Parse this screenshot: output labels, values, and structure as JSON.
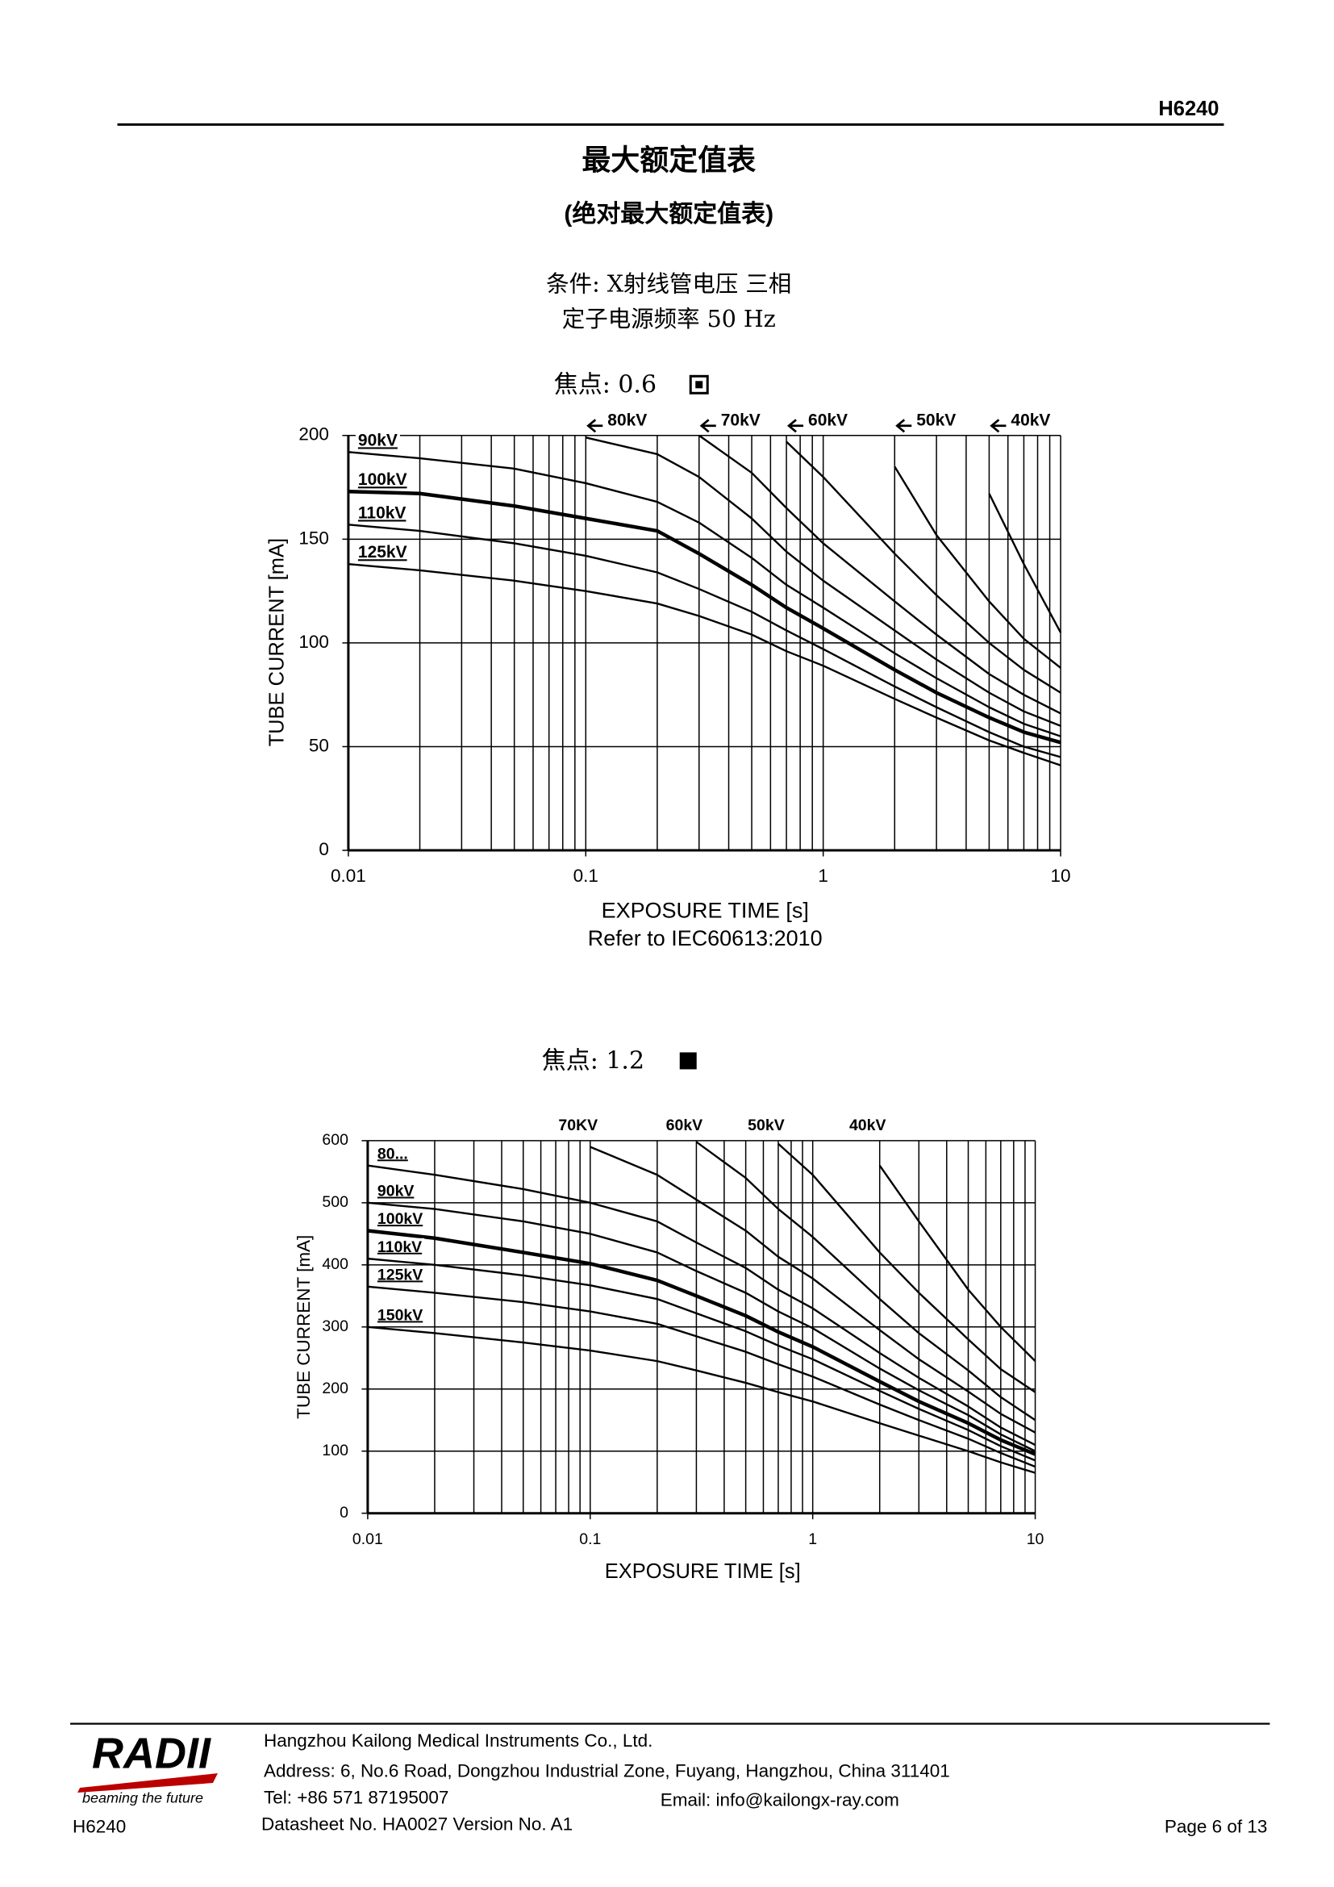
{
  "header": {
    "code": "H6240",
    "title": "最大额定值表",
    "subtitle": "(绝对最大额定值表)",
    "conditions": [
      "条件: X射线管电压 三相",
      "定子电源频率  50 Hz"
    ]
  },
  "chart_data": [
    {
      "type": "line",
      "title": "焦点: 0.6",
      "xlabel": "EXPOSURE TIME [s]",
      "ylabel": "TUBE CURRENT [mA]",
      "note": "Refer to IEC60613:2010",
      "xscale": "log",
      "grid": true,
      "label_arrows": true,
      "xlim": [
        0.01,
        10
      ],
      "xticks": [
        0.01,
        0.1,
        1,
        10
      ],
      "ylim": [
        0,
        200
      ],
      "yticks": [
        0,
        50,
        100,
        150,
        200
      ],
      "x": [
        0.01,
        0.02,
        0.05,
        0.1,
        0.2,
        0.3,
        0.5,
        0.7,
        1,
        2,
        3,
        5,
        7,
        10
      ],
      "series": [
        {
          "name": "90kV",
          "color": "#000000",
          "values": [
            192,
            189,
            184,
            177,
            168,
            158,
            141,
            128,
            117,
            95,
            83,
            69,
            61,
            55
          ]
        },
        {
          "name": "100kV",
          "color": "#000000",
          "line_width": 3,
          "values": [
            173,
            172,
            166,
            160,
            154,
            143,
            128,
            117,
            107,
            87,
            76,
            64,
            57,
            52
          ]
        },
        {
          "name": "110kV",
          "color": "#000000",
          "values": [
            157,
            154,
            148,
            142,
            134,
            126,
            115,
            106,
            97,
            79,
            69,
            57,
            50,
            45
          ]
        },
        {
          "name": "125kV",
          "color": "#000000",
          "values": [
            138,
            135,
            130,
            125,
            119,
            113,
            104,
            96,
            89,
            73,
            64,
            53,
            47,
            41
          ]
        },
        {
          "name": "80kV",
          "color": "#000000",
          "values": [
            null,
            null,
            null,
            199,
            191,
            180,
            160,
            144,
            130,
            106,
            92,
            76,
            67,
            60
          ]
        },
        {
          "name": "70kV",
          "color": "#000000",
          "values": [
            null,
            null,
            null,
            null,
            null,
            200,
            182,
            165,
            148,
            120,
            104,
            85,
            75,
            66
          ]
        },
        {
          "name": "60kV",
          "color": "#000000",
          "values": [
            null,
            null,
            null,
            null,
            null,
            null,
            null,
            197,
            180,
            143,
            123,
            100,
            87,
            76
          ]
        },
        {
          "name": "50kV",
          "color": "#000000",
          "values": [
            null,
            null,
            null,
            null,
            null,
            null,
            null,
            null,
            null,
            185,
            152,
            120,
            102,
            88
          ]
        },
        {
          "name": "40kV",
          "color": "#000000",
          "values": [
            null,
            null,
            null,
            null,
            null,
            null,
            null,
            null,
            null,
            null,
            null,
            172,
            138,
            105
          ]
        }
      ]
    },
    {
      "type": "line",
      "title": "焦点: 1.2",
      "xlabel": "EXPOSURE TIME [s]",
      "ylabel": "TUBE CURRENT [mA]",
      "xscale": "log",
      "grid": true,
      "label_arrows": false,
      "xlim": [
        0.01,
        10
      ],
      "xticks": [
        0.01,
        0.1,
        1,
        10
      ],
      "ylim": [
        0,
        600
      ],
      "yticks": [
        0,
        100,
        200,
        300,
        400,
        500,
        600
      ],
      "x": [
        0.01,
        0.02,
        0.05,
        0.1,
        0.2,
        0.3,
        0.5,
        0.7,
        1,
        2,
        3,
        5,
        7,
        10
      ],
      "series": [
        {
          "name": "80...",
          "color": "#000000",
          "values": [
            560,
            545,
            522,
            500,
            470,
            436,
            395,
            360,
            330,
            258,
            218,
            172,
            138,
            110
          ]
        },
        {
          "name": "90kV",
          "color": "#000000",
          "values": [
            500,
            490,
            470,
            450,
            420,
            390,
            355,
            325,
            298,
            233,
            198,
            158,
            127,
            100
          ]
        },
        {
          "name": "100kV",
          "color": "#000000",
          "line_width": 3,
          "values": [
            455,
            443,
            420,
            402,
            375,
            350,
            318,
            292,
            268,
            212,
            180,
            145,
            118,
            95
          ]
        },
        {
          "name": "110kV",
          "color": "#000000",
          "values": [
            410,
            400,
            383,
            367,
            345,
            322,
            293,
            270,
            248,
            197,
            168,
            134,
            108,
            85
          ]
        },
        {
          "name": "125kV",
          "color": "#000000",
          "values": [
            365,
            355,
            340,
            325,
            305,
            285,
            260,
            240,
            220,
            175,
            150,
            120,
            97,
            75
          ]
        },
        {
          "name": "150kV",
          "color": "#000000",
          "values": [
            300,
            290,
            275,
            262,
            245,
            230,
            210,
            195,
            180,
            145,
            125,
            100,
            82,
            65
          ]
        },
        {
          "name": "70KV",
          "color": "#000000",
          "values": [
            null,
            null,
            null,
            590,
            545,
            505,
            455,
            413,
            378,
            295,
            248,
            196,
            160,
            130
          ]
        },
        {
          "name": "60kV",
          "color": "#000000",
          "values": [
            null,
            null,
            null,
            null,
            null,
            598,
            540,
            490,
            445,
            345,
            290,
            230,
            187,
            150
          ]
        },
        {
          "name": "50kV",
          "color": "#000000",
          "values": [
            null,
            null,
            null,
            null,
            null,
            null,
            null,
            595,
            545,
            420,
            355,
            280,
            232,
            195
          ]
        },
        {
          "name": "40kV",
          "color": "#000000",
          "values": [
            null,
            null,
            null,
            null,
            null,
            null,
            null,
            null,
            null,
            560,
            470,
            360,
            300,
            245
          ]
        }
      ]
    }
  ],
  "footer": {
    "logo": "RADII",
    "slogan": "beaming the future",
    "code": "H6240",
    "company": "Hangzhou Kailong Medical Instruments Co., Ltd.",
    "address": "Address: 6, No.6 Road, Dongzhou Industrial Zone, Fuyang, Hangzhou, China 311401",
    "tel": "Tel: +86 571 87195007",
    "email": "Email: info@kailongx-ray.com",
    "datasheet": "Datasheet No. HA0027 Version No. A1",
    "page": "Page  6  of  13"
  }
}
